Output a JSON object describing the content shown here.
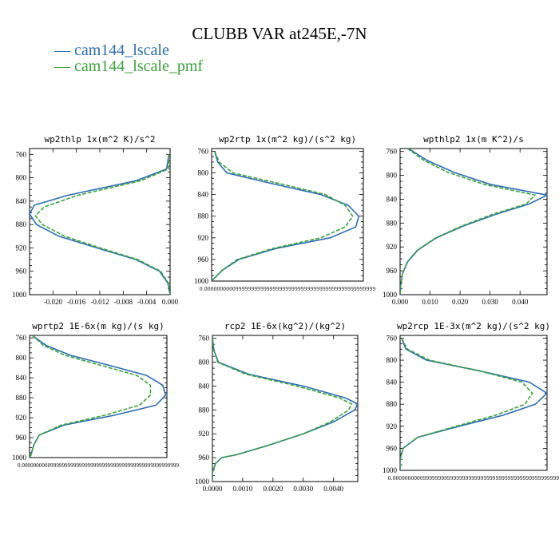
{
  "title": "CLUBB VAR at245E,-7N",
  "legend": [
    {
      "label": "— cam144_lscale",
      "color": "#2a6db5"
    },
    {
      "label": "— cam144_lscale_pmf",
      "color": "#3aa33a"
    }
  ],
  "chart_data": [
    {
      "type": "line",
      "title": "wp2thlp  1x(m^2 K)/s^2",
      "xlim": [
        -0.024,
        0.0
      ],
      "ylim": [
        1000,
        750
      ],
      "xticks": [
        "-0.020",
        "-0.016",
        "-0.012",
        "-0.008",
        "-0.004",
        "0.000"
      ],
      "xtick_values": [
        -0.02,
        -0.016,
        -0.012,
        -0.008,
        -0.004,
        0.0
      ],
      "yticks": [
        "760",
        "800",
        "840",
        "880",
        "920",
        "960",
        "1000"
      ],
      "ytick_values": [
        760,
        800,
        840,
        880,
        920,
        960,
        1000
      ],
      "series": [
        {
          "name": "cam144_lscale",
          "color": "#2a6db5",
          "y": [
            760,
            785,
            805,
            830,
            847,
            862,
            880,
            900,
            920,
            940,
            960,
            980,
            1000
          ],
          "x": [
            -0.0002,
            -0.0006,
            -0.0058,
            -0.0175,
            -0.0232,
            -0.024,
            -0.0228,
            -0.019,
            -0.0125,
            -0.0058,
            -0.0018,
            -0.0004,
            0.0
          ]
        },
        {
          "name": "cam144_lscale_pmf",
          "color": "#3aa33a",
          "y": [
            760,
            785,
            805,
            830,
            850,
            865,
            880,
            900,
            920,
            940,
            960,
            980,
            1000
          ],
          "x": [
            -0.0002,
            -0.0003,
            -0.005,
            -0.0158,
            -0.0215,
            -0.023,
            -0.0218,
            -0.018,
            -0.012,
            -0.0055,
            -0.0016,
            -0.0003,
            0.0
          ]
        }
      ]
    },
    {
      "type": "line",
      "title": "wp2rtp  1x(m^2 kg)/(s^2 kg)",
      "xlim": [
        0.0,
        1.0
      ],
      "ylim": [
        1000,
        755
      ],
      "xticks": [
        "0.0000000000999999999999999999999999999999999999999999999"
      ],
      "xtick_values": [
        0.5
      ],
      "yticks": [
        "760",
        "800",
        "840",
        "880",
        "920",
        "960",
        "1000"
      ],
      "ytick_values": [
        760,
        800,
        840,
        880,
        920,
        960,
        1000
      ],
      "series": [
        {
          "name": "cam144_lscale",
          "color": "#2a6db5",
          "y": [
            760,
            780,
            800,
            820,
            840,
            860,
            880,
            900,
            920,
            940,
            960,
            980,
            1000
          ],
          "x": [
            0.02,
            0.04,
            0.1,
            0.4,
            0.72,
            0.9,
            0.97,
            0.95,
            0.78,
            0.42,
            0.18,
            0.07,
            0.0
          ]
        },
        {
          "name": "cam144_lscale_pmf",
          "color": "#3aa33a",
          "y": [
            760,
            780,
            800,
            820,
            840,
            860,
            880,
            900,
            920,
            940,
            960,
            980,
            1000
          ],
          "x": [
            0.02,
            0.05,
            0.14,
            0.45,
            0.75,
            0.88,
            0.93,
            0.88,
            0.72,
            0.4,
            0.17,
            0.07,
            0.0
          ]
        }
      ]
    },
    {
      "type": "line",
      "title": "wpthlp2  1x(m K^2)/s",
      "xlim": [
        0.0,
        0.049
      ],
      "ylim": [
        1000,
        755
      ],
      "xticks": [
        "0.000",
        "0.010",
        "0.020",
        "0.030",
        "0.040"
      ],
      "xtick_values": [
        0.0,
        0.01,
        0.02,
        0.03,
        0.04
      ],
      "yticks": [
        "760",
        "800",
        "840",
        "880",
        "920",
        "960",
        "1000"
      ],
      "ytick_values": [
        760,
        800,
        840,
        880,
        920,
        960,
        1000
      ],
      "series": [
        {
          "name": "cam144_lscale",
          "color": "#2a6db5",
          "y": [
            755,
            775,
            795,
            815,
            833,
            848,
            865,
            885,
            905,
            925,
            945,
            965,
            985,
            1000
          ],
          "x": [
            0.0028,
            0.009,
            0.018,
            0.03,
            0.049,
            0.043,
            0.032,
            0.021,
            0.012,
            0.006,
            0.0025,
            0.0008,
            0.0002,
            0.0
          ]
        },
        {
          "name": "cam144_lscale_pmf",
          "color": "#3aa33a",
          "y": [
            755,
            775,
            795,
            815,
            833,
            848,
            865,
            885,
            905,
            925,
            945,
            965,
            985,
            1000
          ],
          "x": [
            0.0025,
            0.008,
            0.016,
            0.028,
            0.045,
            0.042,
            0.031,
            0.0205,
            0.0118,
            0.0058,
            0.0024,
            0.0008,
            0.0002,
            0.0
          ]
        }
      ]
    },
    {
      "type": "line",
      "title": "wprtp2  1E-6x(m kg)/(s kg)",
      "xlim": [
        0.0,
        1.0
      ],
      "ylim": [
        1000,
        755
      ],
      "xticks": [
        "0.0000000000999999999999999999999999999999999999999999999"
      ],
      "xtick_values": [
        0.5
      ],
      "yticks": [
        "760",
        "800",
        "840",
        "880",
        "920",
        "960",
        "1000"
      ],
      "ytick_values": [
        760,
        800,
        840,
        880,
        920,
        960,
        1000
      ],
      "series": [
        {
          "name": "cam144_lscale",
          "color": "#2a6db5",
          "y": [
            755,
            775,
            795,
            815,
            835,
            855,
            875,
            895,
            915,
            935,
            955,
            975,
            995,
            1000
          ],
          "x": [
            0.02,
            0.12,
            0.3,
            0.58,
            0.85,
            0.97,
            0.99,
            0.92,
            0.62,
            0.25,
            0.07,
            0.03,
            0.01,
            0.0
          ]
        },
        {
          "name": "cam144_lscale_pmf",
          "color": "#3aa33a",
          "y": [
            755,
            775,
            795,
            815,
            835,
            855,
            875,
            895,
            915,
            935,
            955,
            975,
            995,
            1000
          ],
          "x": [
            0.02,
            0.1,
            0.26,
            0.52,
            0.78,
            0.88,
            0.88,
            0.8,
            0.55,
            0.23,
            0.07,
            0.03,
            0.01,
            0.0
          ]
        }
      ]
    },
    {
      "type": "line",
      "title": "rcp2  1E-6x(kg^2)/(kg^2)",
      "xlim": [
        0.0,
        0.0048
      ],
      "ylim": [
        1000,
        755
      ],
      "xticks": [
        "0.0000",
        "0.0010",
        "0.0020",
        "0.0030",
        "0.0040"
      ],
      "xtick_values": [
        0.0,
        0.001,
        0.002,
        0.003,
        0.004
      ],
      "yticks": [
        "760",
        "800",
        "840",
        "880",
        "920",
        "960",
        "1000"
      ],
      "ytick_values": [
        760,
        800,
        840,
        880,
        920,
        960,
        1000
      ],
      "series": [
        {
          "name": "cam144_lscale",
          "color": "#2a6db5",
          "y": [
            760,
            780,
            800,
            820,
            840,
            860,
            870,
            880,
            900,
            920,
            940,
            955,
            960,
            970,
            985,
            1000
          ],
          "x": [
            0.0,
            5e-05,
            0.0002,
            0.0012,
            0.003,
            0.0044,
            0.0048,
            0.0047,
            0.004,
            0.003,
            0.0018,
            0.0008,
            0.0003,
            0.0001,
            0.0,
            0.0
          ]
        },
        {
          "name": "cam144_lscale_pmf",
          "color": "#3aa33a",
          "y": [
            760,
            780,
            800,
            820,
            840,
            860,
            870,
            880,
            900,
            920,
            940,
            955,
            960,
            970,
            985,
            1000
          ],
          "x": [
            0.0,
            5e-05,
            0.00018,
            0.0011,
            0.0028,
            0.0042,
            0.0046,
            0.0045,
            0.0039,
            0.003,
            0.0018,
            0.0008,
            0.0003,
            0.0001,
            0.0,
            0.0
          ]
        }
      ]
    },
    {
      "type": "line",
      "title": "wp2rcp  1E-3x(m^2 kg)/(s^2 kg)",
      "xlim": [
        0.0,
        1.0
      ],
      "ylim": [
        1000,
        755
      ],
      "xticks": [
        "0.0000000000999999999999999999999999999999999999999999999"
      ],
      "xtick_values": [
        0.5
      ],
      "yticks": [
        "760",
        "800",
        "840",
        "880",
        "920",
        "960",
        "1000"
      ],
      "ytick_values": [
        760,
        800,
        840,
        880,
        920,
        960,
        1000
      ],
      "series": [
        {
          "name": "cam144_lscale",
          "color": "#2a6db5",
          "y": [
            760,
            780,
            800,
            820,
            840,
            860,
            880,
            900,
            920,
            940,
            960,
            980,
            1000
          ],
          "x": [
            0.01,
            0.04,
            0.18,
            0.55,
            0.88,
            1.0,
            0.92,
            0.7,
            0.4,
            0.12,
            0.02,
            0.0,
            0.0
          ]
        },
        {
          "name": "cam144_lscale_pmf",
          "color": "#3aa33a",
          "y": [
            760,
            780,
            800,
            820,
            840,
            860,
            880,
            900,
            920,
            940,
            960,
            980,
            1000
          ],
          "x": [
            0.01,
            0.05,
            0.2,
            0.55,
            0.83,
            0.9,
            0.85,
            0.65,
            0.38,
            0.12,
            0.02,
            0.0,
            0.0
          ]
        }
      ]
    }
  ]
}
